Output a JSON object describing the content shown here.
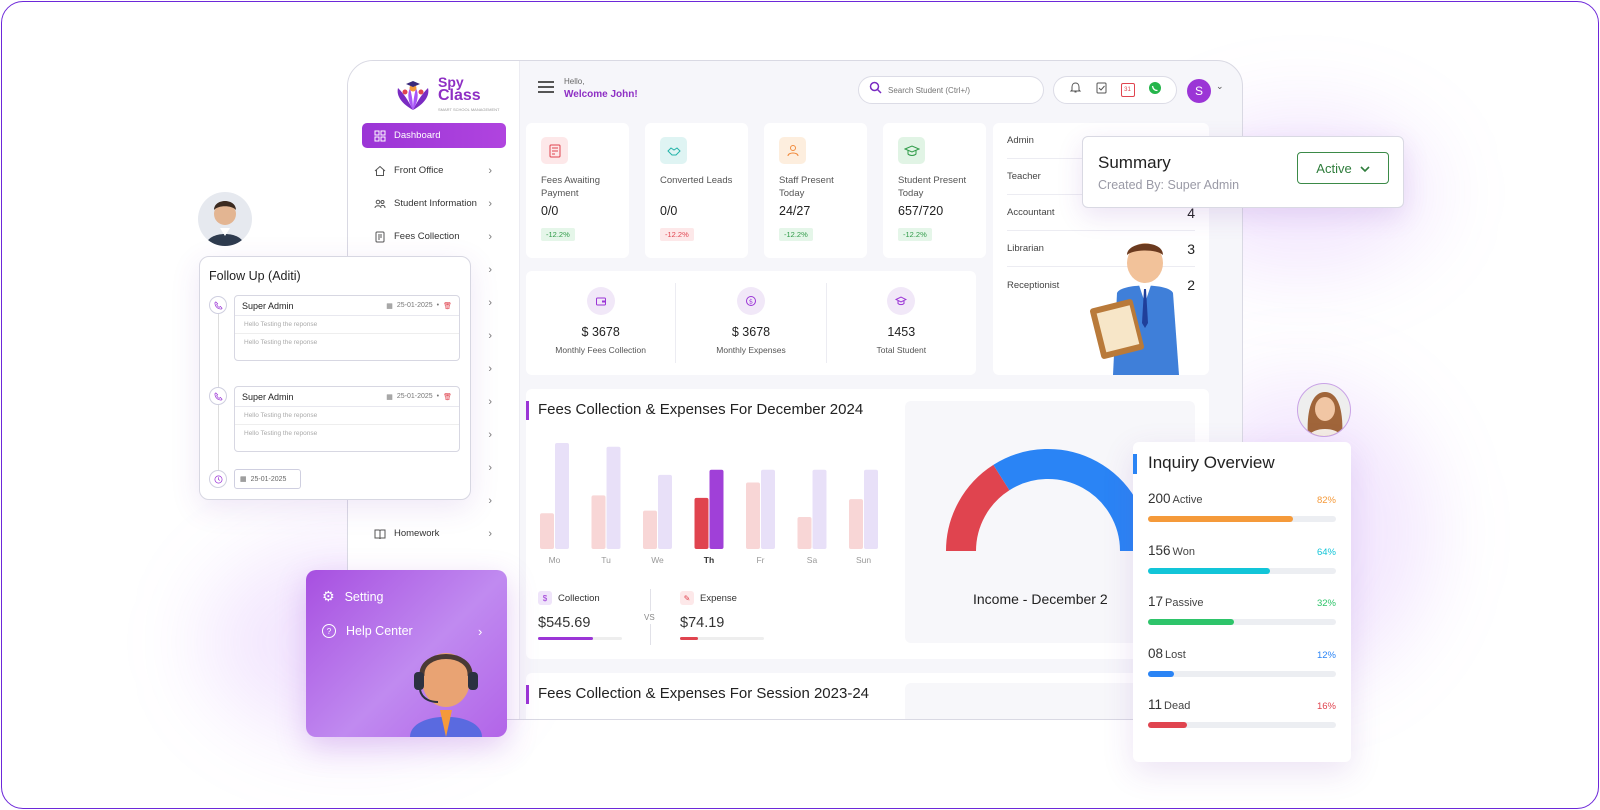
{
  "sidebar": {
    "logo": {
      "line1": "Spy",
      "line2": "Class",
      "tagline": "SMART SCHOOL MANAGEMENT"
    },
    "items": [
      {
        "label": "Dashboard"
      },
      {
        "label": "Front Office"
      },
      {
        "label": "Student Information"
      },
      {
        "label": "Fees Collection"
      },
      {
        "label": "Homework"
      }
    ]
  },
  "topbar": {
    "hello": "Hello,",
    "welcome": "Welcome John!",
    "search_placeholder": "Search Student (Ctrl+/)",
    "calendar_day": "31",
    "avatar_letter": "S"
  },
  "stats": [
    {
      "label": "Fees Awaiting Payment",
      "value": "0/0",
      "change": "-12.2%",
      "trend": "up",
      "color": "#e0444f"
    },
    {
      "label": "Converted Leads",
      "value": "0/0",
      "change": "-12.2%",
      "trend": "down",
      "color": "#22b3a8"
    },
    {
      "label": "Staff Present Today",
      "value": "24/27",
      "change": "-12.2%",
      "trend": "up",
      "color": "#f08a3c"
    },
    {
      "label": "Student Present Today",
      "value": "657/720",
      "change": "-12.2%",
      "trend": "up",
      "color": "#2f9b48"
    }
  ],
  "totals": [
    {
      "value": "$ 3678",
      "label": "Monthly Fees Collection"
    },
    {
      "value": "$ 3678",
      "label": "Monthly Expenses"
    },
    {
      "value": "1453",
      "label": "Total Student"
    }
  ],
  "roles": [
    {
      "label": "Admin",
      "count": ""
    },
    {
      "label": "Teacher",
      "count": ""
    },
    {
      "label": "Accountant",
      "count": "4"
    },
    {
      "label": "Librarian",
      "count": "3"
    },
    {
      "label": "Receptionist",
      "count": "2"
    }
  ],
  "chart1": {
    "title": "Fees Collection & Expenses For December 2024",
    "donut_label": "Income - December 2",
    "collection_label": "Collection",
    "collection_value": "$545.69",
    "expense_label": "Expense",
    "expense_value": "$74.19",
    "vs": "VS",
    "collection_progress": 0.65,
    "expense_progress": 0.22
  },
  "chart_data": {
    "type": "bar",
    "categories": [
      "Mo",
      "Tu",
      "We",
      "Th",
      "Fr",
      "Sa",
      "Sun"
    ],
    "highlight": "Th",
    "series": [
      {
        "values": [
          28,
          42,
          30,
          40,
          52,
          25,
          39
        ]
      },
      {
        "values": [
          83,
          80,
          58,
          62,
          62,
          62,
          62
        ]
      }
    ],
    "ylim": [
      0,
      90
    ],
    "colors": {
      "series1": "#f8d6d6",
      "series2": "#e8e0f8",
      "highlight1": "#e0444f",
      "highlight2": "#a040d8"
    }
  },
  "donut": {
    "segments": [
      {
        "value": 0.32,
        "color": "#e0444f"
      },
      {
        "value": 0.68,
        "color": "#2a84f5"
      }
    ]
  },
  "chart2": {
    "title": "Fees Collection & Expenses For Session 2023-24"
  },
  "followup": {
    "title": "Follow Up (Aditi)",
    "entries": [
      {
        "name": "Super Admin",
        "date": "25-01-2025",
        "lines": [
          "Hello Testing the reponse",
          "Hello Testing the reponse"
        ]
      },
      {
        "name": "Super Admin",
        "date": "25-01-2025",
        "lines": [
          "Hello Testing the reponse",
          "Hello Testing the reponse"
        ]
      }
    ],
    "new_date": "25-01-2025"
  },
  "setting_menu": {
    "setting": "Setting",
    "help": "Help Center"
  },
  "summary": {
    "title": "Summary",
    "subtitle": "Created By: Super Admin",
    "status": "Active",
    "status_color": "#2f7d3c"
  },
  "inquiry": {
    "title": "Inquiry Overview",
    "rows": [
      {
        "count": "200",
        "label": "Active",
        "pct": "82%",
        "progress": 0.77,
        "color": "#f59a3a"
      },
      {
        "count": "156",
        "label": "Won",
        "pct": "64%",
        "progress": 0.65,
        "color": "#12c5d8"
      },
      {
        "count": "17",
        "label": "Passive",
        "pct": "32%",
        "progress": 0.46,
        "color": "#2ec46a"
      },
      {
        "count": "08",
        "label": "Lost",
        "pct": "12%",
        "progress": 0.14,
        "color": "#2a84f5"
      },
      {
        "count": "11",
        "label": "Dead",
        "pct": "16%",
        "progress": 0.21,
        "color": "#e0444f"
      }
    ]
  }
}
